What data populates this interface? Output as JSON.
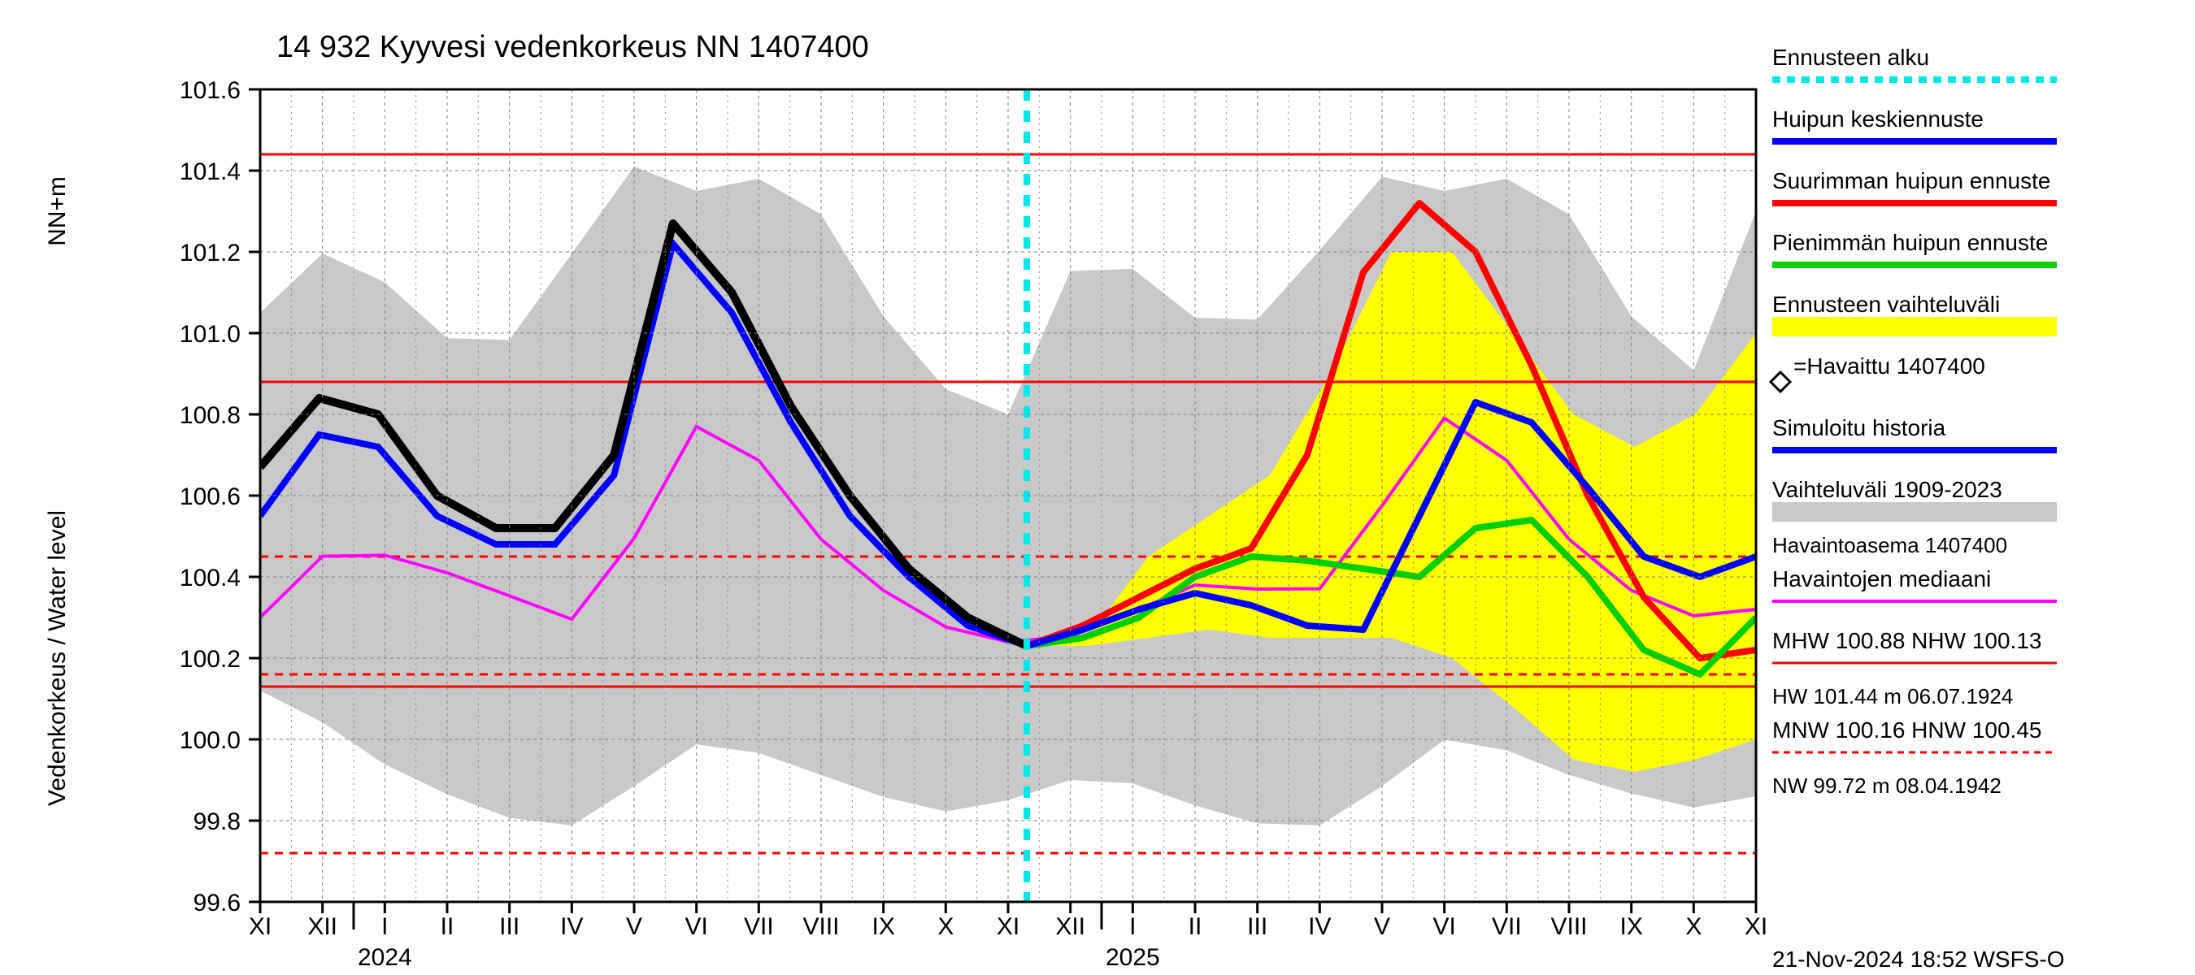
{
  "title": "14 932 Kyyvesi vedenkorkeus NN 1407400",
  "footer": "21-Nov-2024 18:52 WSFS-O",
  "y_axis": {
    "label_left_outer": "Vedenkorkeus / Water level",
    "label_left_inner": "NN+m",
    "min": 99.6,
    "max": 101.6,
    "tick_step": 0.2,
    "tick_labels": [
      "99.6",
      "99.8",
      "100.0",
      "100.2",
      "100.4",
      "100.6",
      "100.8",
      "101.0",
      "101.2",
      "101.4",
      "101.6"
    ]
  },
  "x_axis": {
    "month_labels": [
      "XI",
      "XII",
      "I",
      "II",
      "III",
      "IV",
      "V",
      "VI",
      "VII",
      "VIII",
      "IX",
      "X",
      "XI",
      "XII",
      "I",
      "II",
      "III",
      "IV",
      "V",
      "VI",
      "VII",
      "VIII",
      "IX",
      "X",
      "XI"
    ],
    "year_markers": [
      {
        "label": "2024",
        "at_month_index": 2
      },
      {
        "label": "2025",
        "at_month_index": 14
      }
    ],
    "forecast_start_month_index": 12.3
  },
  "colors": {
    "bg": "#ffffff",
    "grid": "#808080",
    "axis": "#000000",
    "grey_band": "#c8c8c8",
    "yellow_band": "#ffff00",
    "cyan": "#00e8e8",
    "blue": "#0000ff",
    "red": "#ff0000",
    "green": "#00d000",
    "magenta": "#ff00ff",
    "black": "#000000"
  },
  "ref_lines": {
    "hw_solid": 101.44,
    "mhw_solid": 100.88,
    "nhw_solid": 100.13,
    "hnw_dash": 100.45,
    "mnw_dash": 100.16,
    "nw_dash": 99.72
  },
  "legend": [
    {
      "key": "forecast_start",
      "label": "Ennusteen alku",
      "type": "line",
      "color": "#00e8e8",
      "dash": "10,8",
      "width": 8
    },
    {
      "key": "peak_mean",
      "label": "Huipun keskiennuste",
      "type": "line",
      "color": "#0000ff",
      "width": 8
    },
    {
      "key": "peak_max",
      "label": "Suurimman huipun ennuste",
      "type": "line",
      "color": "#ff0000",
      "width": 8
    },
    {
      "key": "peak_min",
      "label": "Pienimmän huipun ennuste",
      "type": "line",
      "color": "#00d000",
      "width": 8
    },
    {
      "key": "forecast_range",
      "label": "Ennusteen vaihteluväli",
      "type": "band",
      "color": "#ffff00"
    },
    {
      "key": "observed",
      "label": "=Havaittu 1407400",
      "type": "marker",
      "marker": "diamond",
      "color": "#000000"
    },
    {
      "key": "sim_history",
      "label": "Simuloitu historia",
      "type": "line",
      "color": "#0000ff",
      "width": 8
    },
    {
      "key": "hist_range",
      "label": "Vaihteluväli 1909-2023",
      "sub": " Havaintoasema 1407400",
      "type": "band",
      "color": "#c8c8c8"
    },
    {
      "key": "median",
      "label": "Havaintojen mediaani",
      "type": "line",
      "color": "#ff00ff",
      "width": 4
    },
    {
      "key": "hw_block",
      "label": "MHW 100.88 NHW 100.13",
      "sub": "HW 101.44 m 06.07.1924",
      "type": "line",
      "color": "#ff0000",
      "width": 3
    },
    {
      "key": "nw_block",
      "label": "MNW 100.16 HNW 100.45",
      "sub": "NW  99.72 m 08.04.1942",
      "type": "line",
      "color": "#ff0000",
      "dash": "8,6",
      "width": 3
    }
  ],
  "series": {
    "grey_upper": [
      101.05,
      101.2,
      101.15,
      101.0,
      100.95,
      101.05,
      101.4,
      101.42,
      101.3,
      101.42,
      101.25,
      101.0,
      100.85,
      100.8,
      101.15,
      101.18,
      101.05,
      101.0,
      101.1,
      101.35,
      101.42,
      101.3,
      101.42,
      101.25,
      101.0,
      100.9,
      101.3
    ],
    "grey_lower": [
      100.12,
      100.05,
      99.95,
      99.88,
      99.82,
      99.78,
      99.8,
      99.97,
      100.0,
      99.95,
      99.9,
      99.85,
      99.82,
      99.85,
      99.9,
      99.9,
      99.85,
      99.8,
      99.78,
      99.8,
      99.97,
      100.02,
      99.95,
      99.9,
      99.86,
      99.83,
      99.86
    ],
    "yellow_upper": [
      100.23,
      100.25,
      100.45,
      100.55,
      100.65,
      100.9,
      101.2,
      101.2,
      101.0,
      100.8,
      100.72,
      100.8,
      101.0
    ],
    "yellow_lower": [
      100.23,
      100.23,
      100.25,
      100.27,
      100.25,
      100.25,
      100.25,
      100.2,
      100.08,
      99.95,
      99.92,
      99.95,
      100.0
    ],
    "observed": [
      100.67,
      100.84,
      100.8,
      100.6,
      100.52,
      100.52,
      100.7,
      101.27,
      101.1,
      100.82,
      100.6,
      100.42,
      100.3,
      100.23
    ],
    "sim_history_left": [
      100.55,
      100.75,
      100.72,
      100.55,
      100.48,
      100.48,
      100.65,
      101.22,
      101.05,
      100.78,
      100.55,
      100.4,
      100.28,
      100.23
    ],
    "median": [
      100.3,
      100.45,
      100.46,
      100.42,
      100.38,
      100.3,
      100.29,
      100.7,
      100.82,
      100.62,
      100.45,
      100.35,
      100.27,
      100.24,
      100.25,
      100.3,
      100.38,
      100.38,
      100.35,
      100.4,
      100.75,
      100.82,
      100.62,
      100.45,
      100.35,
      100.3,
      100.32
    ],
    "blue_fc": [
      100.23,
      100.27,
      100.32,
      100.36,
      100.33,
      100.28,
      100.27,
      100.55,
      100.83,
      100.78,
      100.62,
      100.45,
      100.4,
      100.45
    ],
    "red_fc": [
      100.23,
      100.28,
      100.35,
      100.42,
      100.47,
      100.7,
      101.15,
      101.32,
      101.2,
      100.92,
      100.6,
      100.35,
      100.2,
      100.22
    ],
    "green_fc": [
      100.23,
      100.25,
      100.3,
      100.4,
      100.45,
      100.44,
      100.42,
      100.4,
      100.52,
      100.54,
      100.4,
      100.22,
      100.16,
      100.3
    ]
  },
  "line_widths": {
    "grid": 1,
    "axis": 3,
    "ref_solid": 3,
    "ref_dash": 3,
    "median": 4,
    "forecast": 8,
    "observed": 10,
    "cyan": 8
  }
}
